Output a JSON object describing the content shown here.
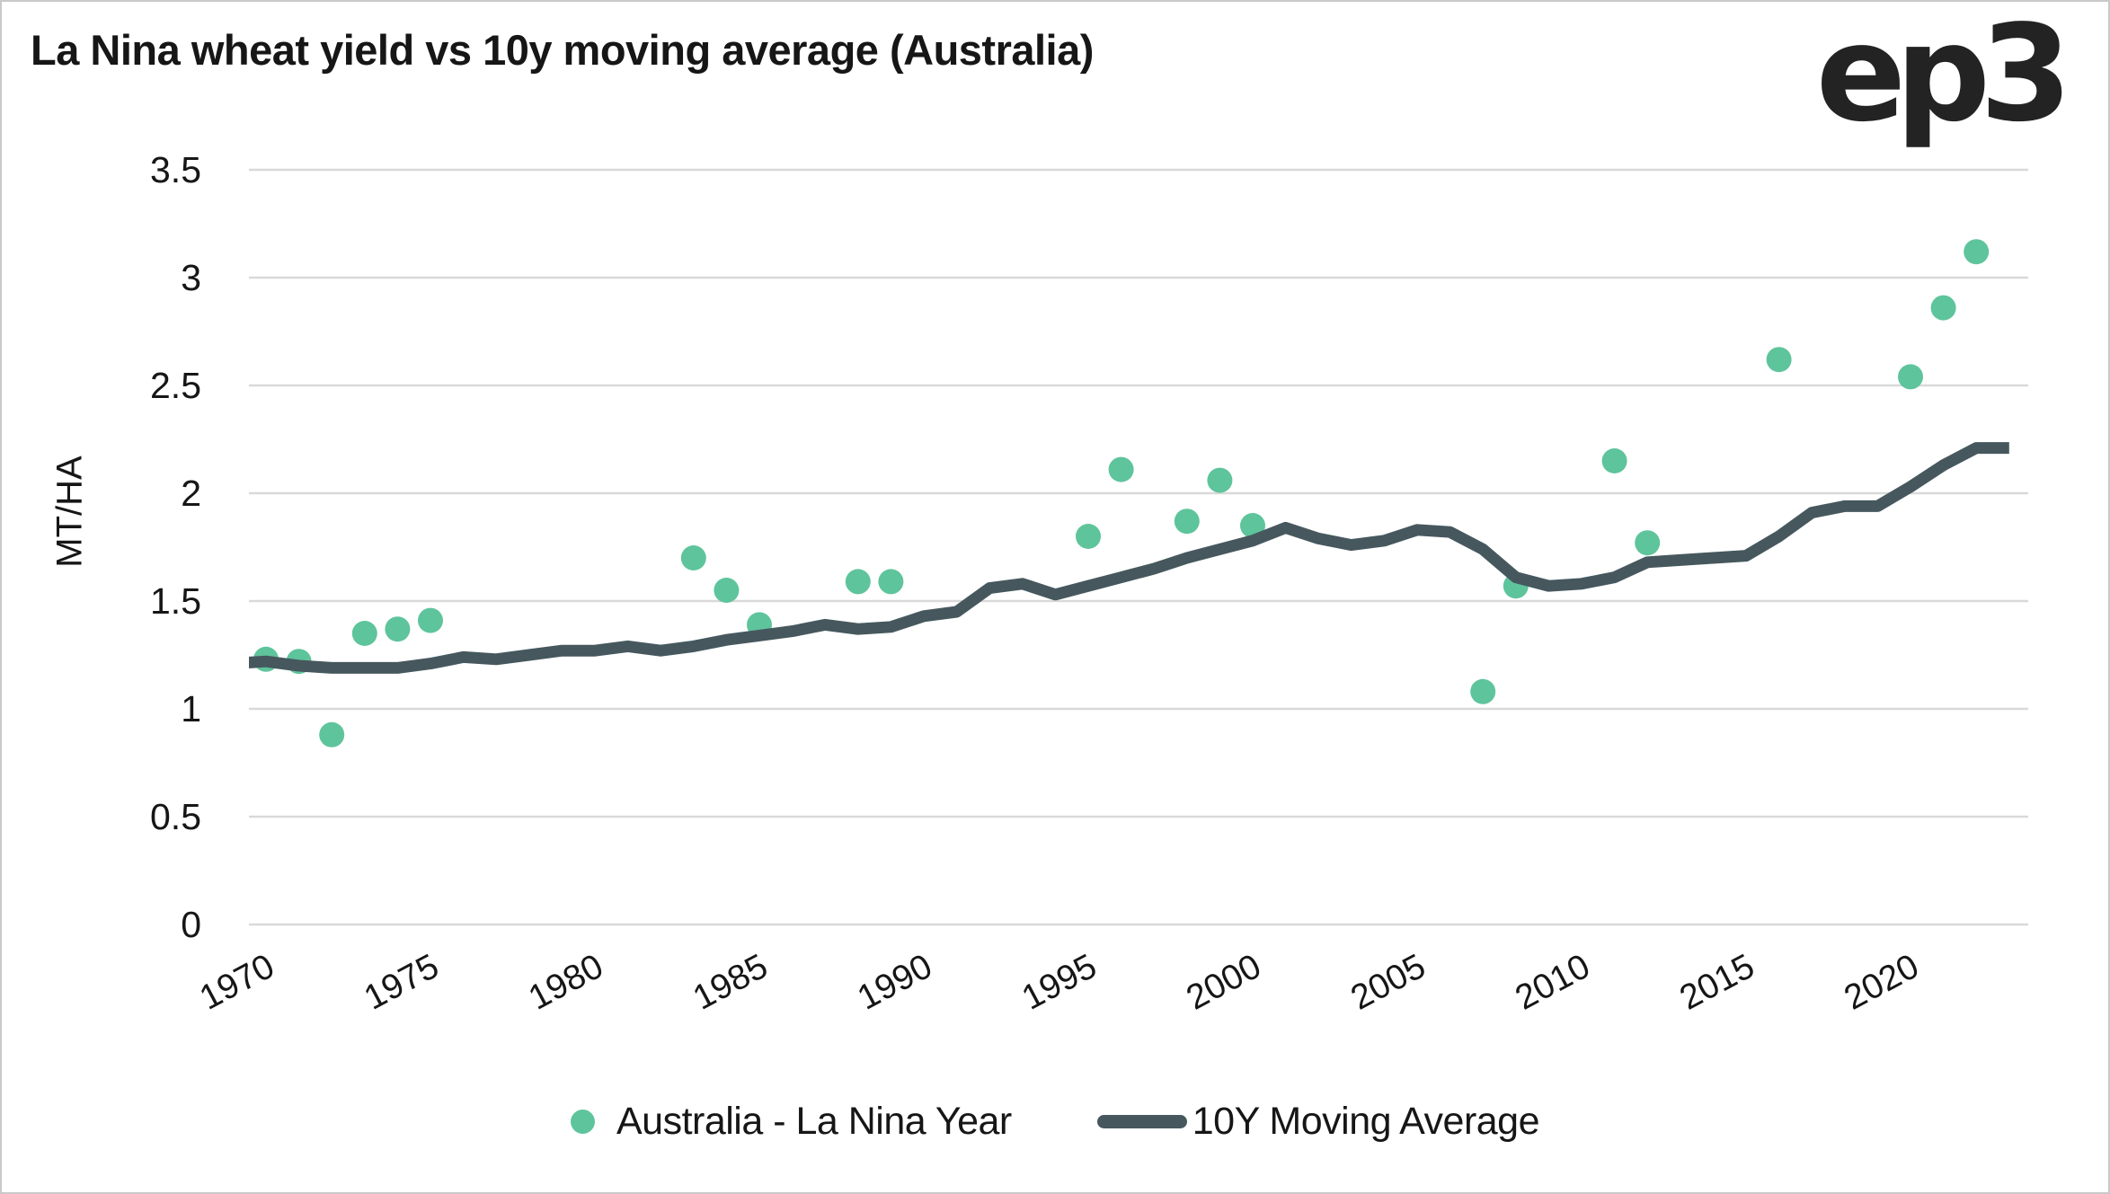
{
  "title": "La Nina wheat yield vs 10y moving average (Australia)",
  "logo": {
    "text": "ep3"
  },
  "colors": {
    "scatter": "#5ec49c",
    "line": "#46585e",
    "grid": "#d9d9d9",
    "text": "#161616",
    "logo": "#232323",
    "frame_border": "#c9c9c9",
    "background": "#ffffff"
  },
  "legend": {
    "scatter_label": "Australia - La Nina Year",
    "line_label": "10Y Moving Average"
  },
  "chart_data": {
    "type": "scatter",
    "title": "La Nina wheat yield vs 10y moving average (Australia)",
    "xlabel": "",
    "ylabel": "MT/HA",
    "ylim": [
      0,
      3.5
    ],
    "xlim": [
      1969.5,
      2023.6
    ],
    "grid": "horizontal-only",
    "legend_position": "bottom",
    "yticks": [
      "0",
      "0.5",
      "1",
      "1.5",
      "2",
      "2.5",
      "3",
      "3.5"
    ],
    "xticks": [
      "1970",
      "1975",
      "1980",
      "1985",
      "1990",
      "1995",
      "2000",
      "2005",
      "2010",
      "2015",
      "2020"
    ],
    "series": [
      {
        "name": "Australia - La Nina Year",
        "type": "scatter",
        "color": "#5ec49c",
        "points": [
          {
            "x": 1970,
            "y": 1.23
          },
          {
            "x": 1971,
            "y": 1.22
          },
          {
            "x": 1972,
            "y": 0.88
          },
          {
            "x": 1973,
            "y": 1.35
          },
          {
            "x": 1974,
            "y": 1.37
          },
          {
            "x": 1975,
            "y": 1.41
          },
          {
            "x": 1983,
            "y": 1.7
          },
          {
            "x": 1984,
            "y": 1.55
          },
          {
            "x": 1985,
            "y": 1.39
          },
          {
            "x": 1988,
            "y": 1.59
          },
          {
            "x": 1989,
            "y": 1.59
          },
          {
            "x": 1995,
            "y": 1.8
          },
          {
            "x": 1996,
            "y": 2.11
          },
          {
            "x": 1998,
            "y": 1.87
          },
          {
            "x": 1999,
            "y": 2.06
          },
          {
            "x": 2000,
            "y": 1.85
          },
          {
            "x": 2007,
            "y": 1.08
          },
          {
            "x": 2008,
            "y": 1.57
          },
          {
            "x": 2011,
            "y": 2.15
          },
          {
            "x": 2012,
            "y": 1.77
          },
          {
            "x": 2016,
            "y": 2.62
          },
          {
            "x": 2020,
            "y": 2.54
          },
          {
            "x": 2021,
            "y": 2.86
          },
          {
            "x": 2022,
            "y": 3.12
          }
        ]
      },
      {
        "name": "10Y Moving Average",
        "type": "line",
        "color": "#46585e",
        "points": [
          {
            "x": 1969,
            "y": 1.21
          },
          {
            "x": 1970,
            "y": 1.22
          },
          {
            "x": 1971,
            "y": 1.2
          },
          {
            "x": 1972,
            "y": 1.19
          },
          {
            "x": 1973,
            "y": 1.19
          },
          {
            "x": 1974,
            "y": 1.19
          },
          {
            "x": 1975,
            "y": 1.21
          },
          {
            "x": 1976,
            "y": 1.24
          },
          {
            "x": 1977,
            "y": 1.23
          },
          {
            "x": 1978,
            "y": 1.25
          },
          {
            "x": 1979,
            "y": 1.27
          },
          {
            "x": 1980,
            "y": 1.27
          },
          {
            "x": 1981,
            "y": 1.29
          },
          {
            "x": 1982,
            "y": 1.27
          },
          {
            "x": 1983,
            "y": 1.29
          },
          {
            "x": 1984,
            "y": 1.32
          },
          {
            "x": 1985,
            "y": 1.34
          },
          {
            "x": 1986,
            "y": 1.36
          },
          {
            "x": 1987,
            "y": 1.39
          },
          {
            "x": 1988,
            "y": 1.37
          },
          {
            "x": 1989,
            "y": 1.38
          },
          {
            "x": 1990,
            "y": 1.43
          },
          {
            "x": 1991,
            "y": 1.45
          },
          {
            "x": 1992,
            "y": 1.56
          },
          {
            "x": 1993,
            "y": 1.58
          },
          {
            "x": 1994,
            "y": 1.53
          },
          {
            "x": 1995,
            "y": 1.57
          },
          {
            "x": 1996,
            "y": 1.61
          },
          {
            "x": 1997,
            "y": 1.65
          },
          {
            "x": 1998,
            "y": 1.7
          },
          {
            "x": 1999,
            "y": 1.74
          },
          {
            "x": 2000,
            "y": 1.78
          },
          {
            "x": 2001,
            "y": 1.84
          },
          {
            "x": 2002,
            "y": 1.79
          },
          {
            "x": 2003,
            "y": 1.76
          },
          {
            "x": 2004,
            "y": 1.78
          },
          {
            "x": 2005,
            "y": 1.83
          },
          {
            "x": 2006,
            "y": 1.82
          },
          {
            "x": 2007,
            "y": 1.74
          },
          {
            "x": 2008,
            "y": 1.61
          },
          {
            "x": 2009,
            "y": 1.57
          },
          {
            "x": 2010,
            "y": 1.58
          },
          {
            "x": 2011,
            "y": 1.61
          },
          {
            "x": 2012,
            "y": 1.68
          },
          {
            "x": 2013,
            "y": 1.69
          },
          {
            "x": 2014,
            "y": 1.7
          },
          {
            "x": 2015,
            "y": 1.71
          },
          {
            "x": 2016,
            "y": 1.8
          },
          {
            "x": 2017,
            "y": 1.91
          },
          {
            "x": 2018,
            "y": 1.94
          },
          {
            "x": 2019,
            "y": 1.94
          },
          {
            "x": 2020,
            "y": 2.03
          },
          {
            "x": 2021,
            "y": 2.13
          },
          {
            "x": 2022,
            "y": 2.21
          },
          {
            "x": 2023,
            "y": 2.21
          }
        ]
      }
    ]
  }
}
